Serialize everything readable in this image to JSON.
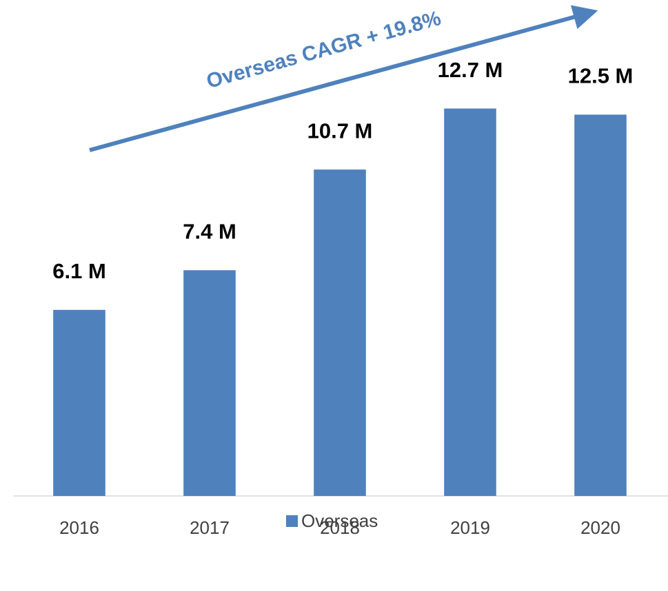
{
  "chart_data": {
    "type": "bar",
    "annotation": "Overseas CAGR + 19.8%",
    "categories": [
      "2016",
      "2017",
      "2018",
      "2019",
      "2020"
    ],
    "series": [
      {
        "name": "Overseas",
        "color": "#4f81bd",
        "values": [
          6.1,
          7.4,
          10.7,
          12.7,
          12.5
        ],
        "value_labels": [
          "6.1 M",
          "7.4 M",
          "10.7 M",
          "12.7 M",
          "12.5 M"
        ]
      }
    ],
    "ylim": [
      0,
      14
    ],
    "legend": "bottom"
  }
}
